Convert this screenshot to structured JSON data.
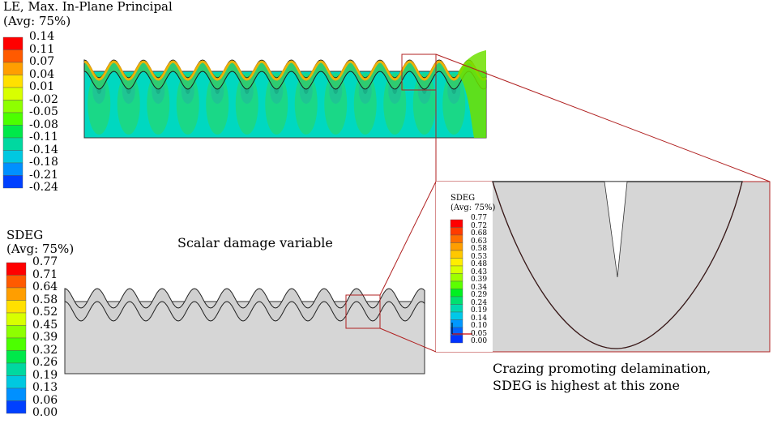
{
  "le_legend": {
    "title_line1": "LE, Max. In-Plane Principal",
    "title_line2": "(Avg: 75%)",
    "values": [
      "0.14",
      "0.11",
      "0.07",
      "0.04",
      "0.01",
      "-0.02",
      "-0.05",
      "-0.08",
      "-0.11",
      "-0.14",
      "-0.18",
      "-0.21",
      "-0.24"
    ],
    "colors": [
      "#ff0000",
      "#ff5a00",
      "#ff9e00",
      "#ffe000",
      "#d8ff00",
      "#8eff00",
      "#4cff00",
      "#00e84a",
      "#00d8a0",
      "#00c8e0",
      "#0090ff",
      "#0040ff",
      "#0000ff"
    ]
  },
  "sdeg_legend": {
    "title_line1": "SDEG",
    "title_line2": "(Avg: 75%)",
    "values": [
      "0.77",
      "0.71",
      "0.64",
      "0.58",
      "0.52",
      "0.45",
      "0.39",
      "0.32",
      "0.26",
      "0.19",
      "0.13",
      "0.06",
      "0.00"
    ],
    "colors": [
      "#ff0000",
      "#ff5a00",
      "#ff9e00",
      "#ffe000",
      "#d8ff00",
      "#8eff00",
      "#4cff00",
      "#00e84a",
      "#00d8a0",
      "#00c8e0",
      "#0090ff",
      "#0040ff",
      "#0000ff"
    ]
  },
  "zoom_legend": {
    "title_line1": "SDEG",
    "title_line2": "(Avg: 75%)",
    "values": [
      "0.77",
      "0.72",
      "0.68",
      "0.63",
      "0.58",
      "0.53",
      "0.48",
      "0.43",
      "0.39",
      "0.34",
      "0.29",
      "0.24",
      "0.19",
      "0.14",
      "0.10",
      "0.05",
      "0.00"
    ],
    "colors": [
      "#ff0000",
      "#ff3c00",
      "#ff6e00",
      "#ff9e00",
      "#ffc800",
      "#ffee00",
      "#d8ff00",
      "#9eff00",
      "#5cff00",
      "#00f020",
      "#00e070",
      "#00d8b0",
      "#00c8e8",
      "#0098ff",
      "#0064ff",
      "#0032ff",
      "#0000ff"
    ]
  },
  "captions": {
    "scalar_damage": "Scalar damage variable",
    "crazing_line1": "Crazing promoting delamination,",
    "crazing_line2": "SDEG is highest at this zone"
  }
}
